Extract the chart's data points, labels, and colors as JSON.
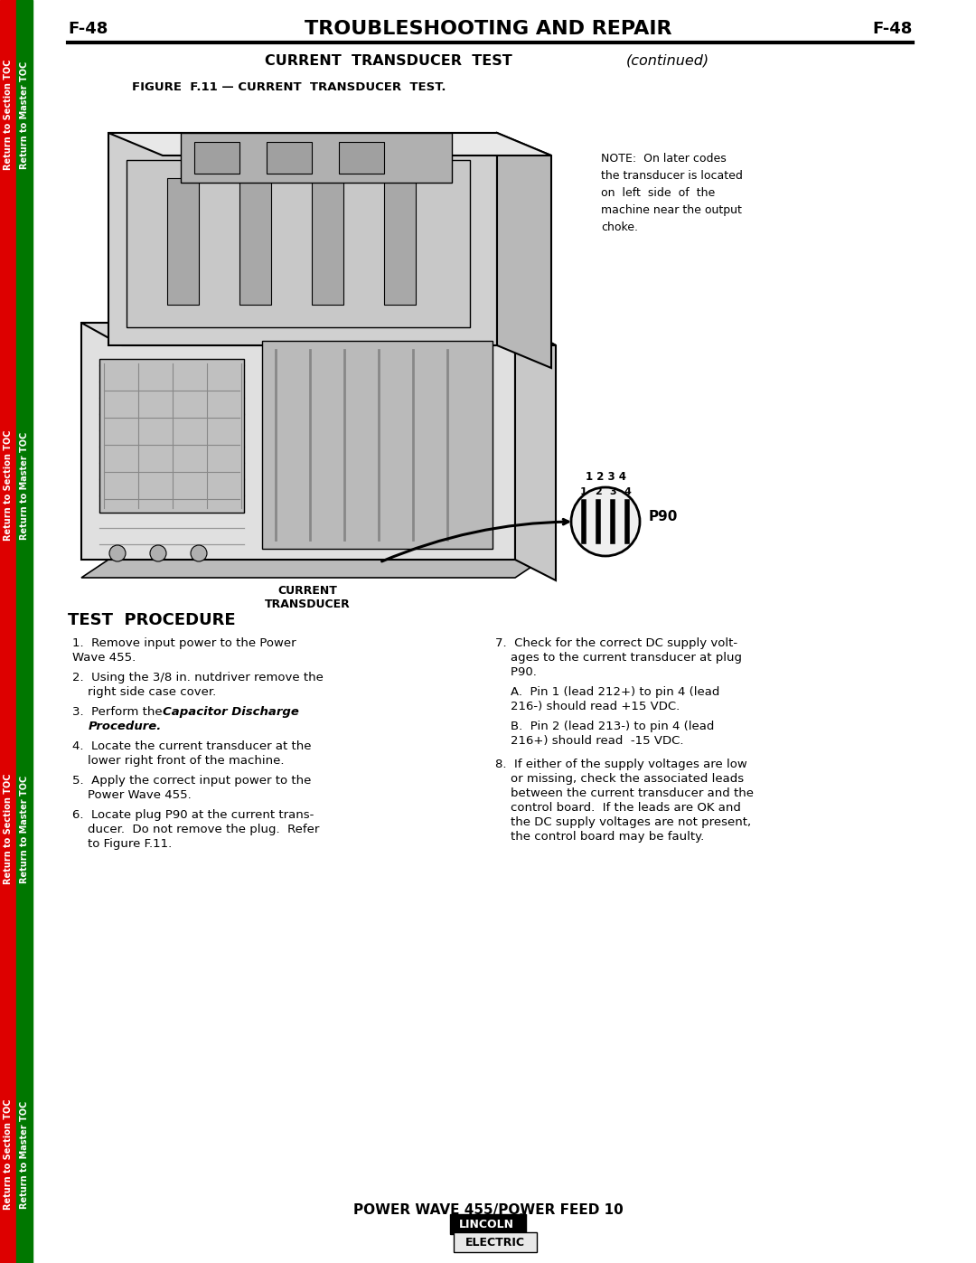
{
  "page_label": "F-48",
  "title": "TROUBLESHOOTING AND REPAIR",
  "subtitle_bold": "CURRENT  TRANSDUCER  TEST",
  "subtitle_italic": "(continued)",
  "figure_label": "FIGURE  F.11 — CURRENT  TRANSDUCER  TEST.",
  "note_lines": [
    "NOTE:  On later codes",
    "the transducer is located",
    "on  left  side  of  the",
    "machine near the output",
    "choke."
  ],
  "test_procedure_title": "TEST  PROCEDURE",
  "step1": "1.  Remove input power to the Power\n    Wave 455.",
  "step2": "2.  Using the 3/8 in. nutdriver remove the\n    right side case cover.",
  "step3_pre": "3.  Perform the ",
  "step3_bold": "Capacitor Discharge\n    Procedure.",
  "step4": "4.  Locate the current transducer at the\n    lower right front of the machine.",
  "step5": "5.  Apply the correct input power to the\n    Power Wave 455.",
  "step6": "6.  Locate plug P90 at the current trans-\n    ducer.  Do not remove the plug.  Refer\n    to Figure F.11.",
  "step7_lines": [
    "7.  Check for the correct DC supply volt-",
    "    ages to the current transducer at plug",
    "    P90."
  ],
  "step7a_lines": [
    "    A.  Pin 1 (lead 212+) to pin 4 (lead",
    "    216-) should read +15 VDC."
  ],
  "step7b_lines": [
    "    B.  Pin 2 (lead 213-) to pin 4 (lead",
    "    216+) should read  -15 VDC."
  ],
  "step8_lines": [
    "8.  If either of the supply voltages are low",
    "    or missing, check the associated leads",
    "    between the current transducer and the",
    "    control board.  If the leads are OK and",
    "    the DC supply voltages are not present,",
    "    the control board may be faulty."
  ],
  "current_transducer_label": "CURRENT\nTRANSDUCER",
  "p90_label": "P90",
  "footer_text": "POWER WAVE 455/POWER FEED 10",
  "sidebar_red": "#DD0000",
  "sidebar_green": "#007700",
  "sidebar_left_text": "Return to Section TOC",
  "sidebar_right_text": "Return to Master TOC",
  "bg_color": "#FFFFFF"
}
